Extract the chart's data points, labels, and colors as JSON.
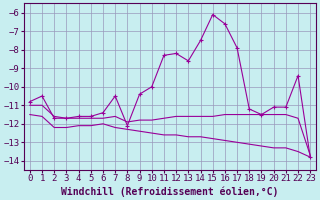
{
  "x": [
    0,
    1,
    2,
    3,
    4,
    5,
    6,
    7,
    8,
    9,
    10,
    11,
    12,
    13,
    14,
    15,
    16,
    17,
    18,
    19,
    20,
    21,
    22,
    23
  ],
  "line1": [
    -10.8,
    -10.5,
    -11.7,
    -11.7,
    -11.6,
    -11.6,
    -11.4,
    -10.5,
    -12.1,
    -10.4,
    -10.0,
    -8.3,
    -8.2,
    -8.6,
    -7.5,
    -6.1,
    -6.6,
    -7.9,
    -11.2,
    -11.5,
    -11.1,
    -11.1,
    -9.4,
    -13.8
  ],
  "line2": [
    -11.0,
    -11.0,
    -11.6,
    -11.7,
    -11.7,
    -11.7,
    -11.7,
    -11.6,
    -11.9,
    -11.8,
    -11.8,
    -11.7,
    -11.6,
    -11.6,
    -11.6,
    -11.6,
    -11.5,
    -11.5,
    -11.5,
    -11.5,
    -11.5,
    -11.5,
    -11.7,
    -13.7
  ],
  "line3": [
    -11.5,
    -11.6,
    -12.2,
    -12.2,
    -12.1,
    -12.1,
    -12.0,
    -12.2,
    -12.3,
    -12.4,
    -12.5,
    -12.6,
    -12.6,
    -12.7,
    -12.7,
    -12.8,
    -12.9,
    -13.0,
    -13.1,
    -13.2,
    -13.3,
    -13.3,
    -13.5,
    -13.8
  ],
  "color": "#990099",
  "bg_color": "#c8eef0",
  "grid_color": "#9999bb",
  "xlabel": "Windchill (Refroidissement éolien,°C)",
  "ylim": [
    -14.5,
    -5.5
  ],
  "xlim": [
    -0.5,
    23.5
  ],
  "yticks": [
    -6,
    -7,
    -8,
    -9,
    -10,
    -11,
    -12,
    -13,
    -14
  ],
  "xticks": [
    0,
    1,
    2,
    3,
    4,
    5,
    6,
    7,
    8,
    9,
    10,
    11,
    12,
    13,
    14,
    15,
    16,
    17,
    18,
    19,
    20,
    21,
    22,
    23
  ],
  "xlabel_fontsize": 7,
  "tick_fontsize": 6.5,
  "marker_size": 3,
  "lw": 0.8
}
